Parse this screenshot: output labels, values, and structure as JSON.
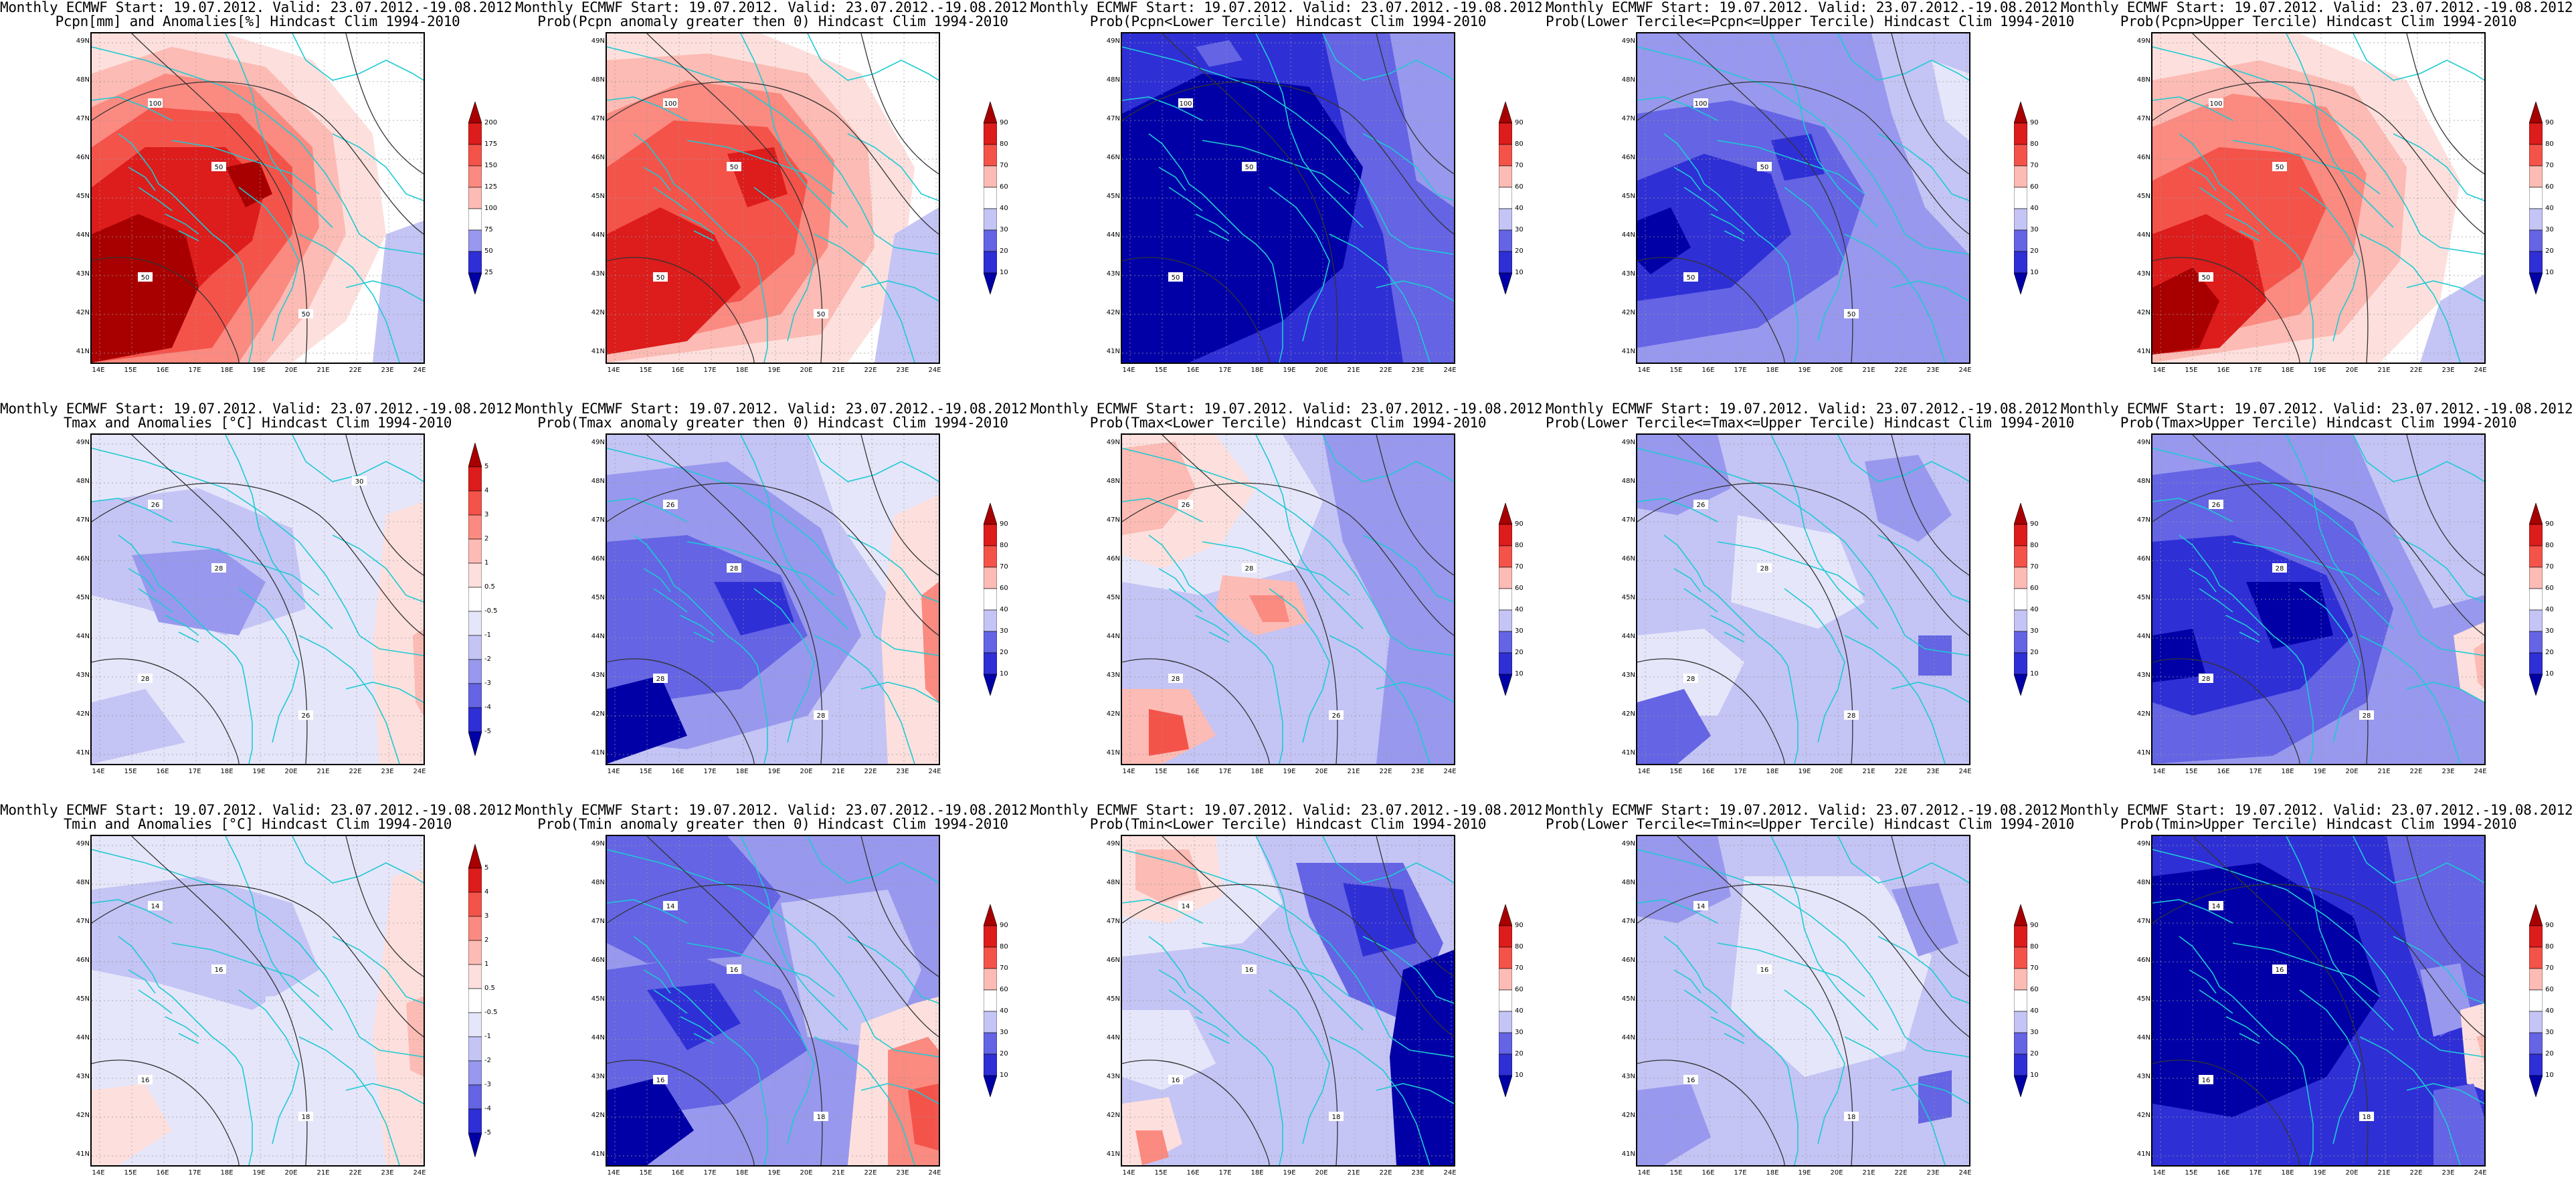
{
  "title_line1": "Monthly ECMWF Start: 19.07.2012. Valid: 23.07.2012.-19.08.2012.",
  "lat_ticks": [
    "49N",
    "48N",
    "47N",
    "46N",
    "45N",
    "44N",
    "43N",
    "42N",
    "41N"
  ],
  "lon_ticks": [
    "14E",
    "15E",
    "16E",
    "17E",
    "18E",
    "19E",
    "20E",
    "21E",
    "22E",
    "23E",
    "24E"
  ],
  "colors": {
    "red": [
      "#fde0dd",
      "#fcbbb4",
      "#fb8a80",
      "#f4534a",
      "#dd1c1c",
      "#a80000"
    ],
    "blue": [
      "#e6e6fa",
      "#c4c4f5",
      "#9898ee",
      "#6464e4",
      "#2f2fd6",
      "#0000a6"
    ],
    "coast": "#1ecad3",
    "contour": "#333333"
  },
  "colorbars": {
    "precip_anom": [
      "200",
      "175",
      "150",
      "125",
      "100",
      "75",
      "50",
      "25"
    ],
    "temp_anom": [
      "5",
      "4",
      "3",
      "2",
      "1",
      "0.5",
      "-0.5",
      "-1",
      "-2",
      "-3",
      "-4",
      "-5"
    ],
    "prob": [
      "90",
      "80",
      "70",
      "60",
      "40",
      "30",
      "20",
      "10"
    ]
  },
  "panels": [
    {
      "id": "pcpn-anom",
      "title2": "Pcpn[mm] and Anomalies[%] Hindcast Clim 1994-2010",
      "cbar": "precip_anom",
      "contour_labels": [
        "100",
        "50",
        "50",
        "50"
      ]
    },
    {
      "id": "pcpn-prob-pos",
      "title2": "Prob(Pcpn anomaly greater then 0) Hindcast Clim 1994-2010",
      "cbar": "prob",
      "contour_labels": [
        "100",
        "50",
        "50",
        "50"
      ]
    },
    {
      "id": "pcpn-prob-lower",
      "title2": "Prob(Pcpn<Lower Tercile) Hindcast Clim 1994-2010",
      "cbar": "prob",
      "contour_labels": [
        "100",
        "50",
        "50"
      ]
    },
    {
      "id": "pcpn-prob-middle",
      "title2": "Prob(Lower Tercile<=Pcpn<=Upper Tercile) Hindcast Clim 1994-2010",
      "cbar": "prob",
      "contour_labels": [
        "100",
        "50",
        "50",
        "50"
      ]
    },
    {
      "id": "pcpn-prob-upper",
      "title2": "Prob(Pcpn>Upper Tercile) Hindcast Clim 1994-2010",
      "cbar": "prob",
      "contour_labels": [
        "100",
        "50",
        "50"
      ]
    },
    {
      "id": "tmax-anom",
      "title2": "Tmax and Anomalies [°C] Hindcast Clim 1994-2010",
      "cbar": "temp_anom",
      "contour_labels": [
        "26",
        "28",
        "28",
        "26",
        "30"
      ]
    },
    {
      "id": "tmax-prob-pos",
      "title2": "Prob(Tmax anomaly greater then 0) Hindcast Clim 1994-2010",
      "cbar": "prob",
      "contour_labels": [
        "26",
        "28",
        "28",
        "28"
      ]
    },
    {
      "id": "tmax-prob-lower",
      "title2": "Prob(Tmax<Lower Tercile) Hindcast Clim 1994-2010",
      "cbar": "prob",
      "contour_labels": [
        "26",
        "28",
        "28",
        "26"
      ]
    },
    {
      "id": "tmax-prob-middle",
      "title2": "Prob(Lower Tercile<=Tmax<=Upper Tercile) Hindcast Clim 1994-2010",
      "cbar": "prob",
      "contour_labels": [
        "26",
        "28",
        "28",
        "28"
      ]
    },
    {
      "id": "tmax-prob-upper",
      "title2": "Prob(Tmax>Upper Tercile) Hindcast Clim 1994-2010",
      "cbar": "prob",
      "contour_labels": [
        "26",
        "28",
        "28",
        "28"
      ]
    },
    {
      "id": "tmin-anom",
      "title2": "Tmin and Anomalies [°C] Hindcast Clim 1994-2010",
      "cbar": "temp_anom",
      "contour_labels": [
        "14",
        "16",
        "16",
        "18"
      ]
    },
    {
      "id": "tmin-prob-pos",
      "title2": "Prob(Tmin anomaly greater then 0) Hindcast Clim 1994-2010",
      "cbar": "prob",
      "contour_labels": [
        "14",
        "16",
        "16",
        "18"
      ]
    },
    {
      "id": "tmin-prob-lower",
      "title2": "Prob(Tmin<Lower Tercile) Hindcast Clim 1994-2010",
      "cbar": "prob",
      "contour_labels": [
        "14",
        "16",
        "16",
        "18"
      ]
    },
    {
      "id": "tmin-prob-middle",
      "title2": "Prob(Lower Tercile<=Tmin<=Upper Tercile) Hindcast Clim 1994-2010",
      "cbar": "prob",
      "contour_labels": [
        "14",
        "16",
        "16",
        "18"
      ]
    },
    {
      "id": "tmin-prob-upper",
      "title2": "Prob(Tmin>Upper Tercile) Hindcast Clim 1994-2010",
      "cbar": "prob",
      "contour_labels": [
        "14",
        "16",
        "16",
        "18"
      ]
    }
  ]
}
